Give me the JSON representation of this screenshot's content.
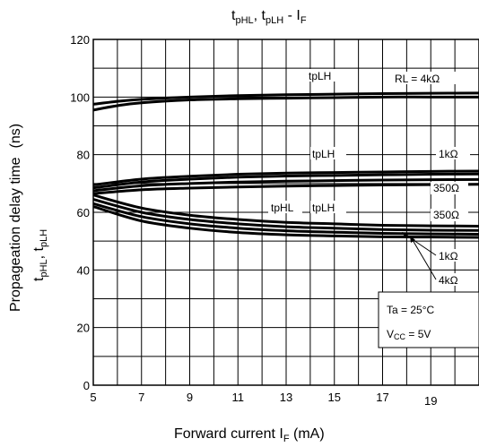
{
  "chart_data": {
    "type": "line",
    "title": {
      "main": "t",
      "sub1": "pHL",
      "sep": ", t",
      "sub2": "pLH",
      "mid": " - I",
      "sub3": "F"
    },
    "xlabel": {
      "main": "Forward current   I",
      "sub": "F",
      "unit": "   (mA)"
    },
    "ylabel": {
      "line1": "Propageation delay time",
      "line1_unit": "(ns)",
      "line2_a": "t",
      "line2_a_sub": "pHL",
      "line2_sep": ",   t",
      "line2_b_sub": "pLH"
    },
    "xlim": [
      5,
      21
    ],
    "ylim": [
      0,
      120
    ],
    "x_ticks": [
      5,
      7,
      9,
      11,
      13,
      15,
      17,
      19
    ],
    "x_tick_labels": [
      "5",
      "7",
      "9",
      "11",
      "13",
      "15",
      "17",
      "19"
    ],
    "y_ticks": [
      0,
      20,
      40,
      60,
      80,
      100,
      120
    ],
    "y_tick_labels": [
      "0",
      "20",
      "40",
      "60",
      "80",
      "100",
      "120"
    ],
    "grid": true,
    "series": [
      {
        "x": [
          5,
          6,
          7,
          9,
          11,
          13,
          15,
          17,
          19,
          21
        ],
        "y": [
          97.5,
          98.5,
          99.2,
          100.0,
          100.5,
          100.8,
          101.0,
          101.2,
          101.3,
          101.4
        ]
      },
      {
        "x": [
          5,
          6,
          7,
          9,
          11,
          13,
          15,
          17,
          19,
          21
        ],
        "y": [
          95.5,
          97.0,
          98.0,
          99.0,
          99.4,
          99.6,
          99.8,
          100.0,
          100.0,
          100.0
        ]
      },
      {
        "x": [
          5,
          7,
          9,
          11,
          13,
          15,
          17,
          19,
          21
        ],
        "y": [
          69.5,
          71.5,
          72.5,
          73.2,
          73.6,
          73.8,
          74.0,
          74.2,
          74.3
        ]
      },
      {
        "x": [
          5,
          7,
          9,
          11,
          13,
          15,
          17,
          19,
          21
        ],
        "y": [
          68.5,
          70.5,
          71.5,
          72.2,
          72.6,
          72.8,
          73.0,
          73.2,
          73.3
        ]
      },
      {
        "x": [
          5,
          7,
          9,
          11,
          13,
          15,
          17,
          19,
          21
        ],
        "y": [
          67.5,
          69.2,
          70.0,
          70.5,
          70.8,
          71.0,
          71.2,
          71.3,
          71.4
        ]
      },
      {
        "x": [
          5,
          7,
          9,
          11,
          13,
          15,
          17,
          19,
          21
        ],
        "y": [
          66.5,
          67.8,
          68.4,
          68.8,
          69.1,
          69.3,
          69.5,
          69.6,
          69.7
        ]
      },
      {
        "x": [
          5,
          7,
          9,
          11,
          13,
          15,
          17,
          19,
          21
        ],
        "y": [
          66.0,
          61.5,
          59.0,
          57.5,
          56.5,
          56.0,
          55.5,
          55.3,
          55.2
        ]
      },
      {
        "x": [
          5,
          7,
          9,
          11,
          13,
          15,
          17,
          19,
          21
        ],
        "y": [
          64.5,
          60.0,
          57.5,
          56.0,
          55.0,
          54.5,
          54.0,
          53.8,
          53.7
        ]
      },
      {
        "x": [
          5,
          7,
          9,
          11,
          13,
          15,
          17,
          19,
          21
        ],
        "y": [
          63.0,
          58.5,
          56.0,
          54.5,
          53.6,
          53.1,
          52.7,
          52.5,
          52.4
        ]
      },
      {
        "x": [
          5,
          7,
          9,
          11,
          13,
          15,
          17,
          19,
          21
        ],
        "y": [
          62.0,
          57.0,
          54.5,
          53.0,
          52.2,
          51.8,
          51.5,
          51.4,
          51.3
        ]
      }
    ],
    "annotations": {
      "tplh_top": "tpLH",
      "rl": "RL = 4kΩ",
      "tplh_mid": "tpLH",
      "r_1k_upper": "1kΩ",
      "r_350_upper": "350Ω",
      "tphl": "tpHL",
      "tplh_low": "tpLH",
      "r_350_lower": "350Ω",
      "r_1k_lower": "1kΩ",
      "r_4k_lower": "4kΩ"
    },
    "conditions": {
      "ta": "Ta = 25°C",
      "vcc_main": "V",
      "vcc_sub": "CC",
      "vcc_val": " = 5V"
    }
  }
}
